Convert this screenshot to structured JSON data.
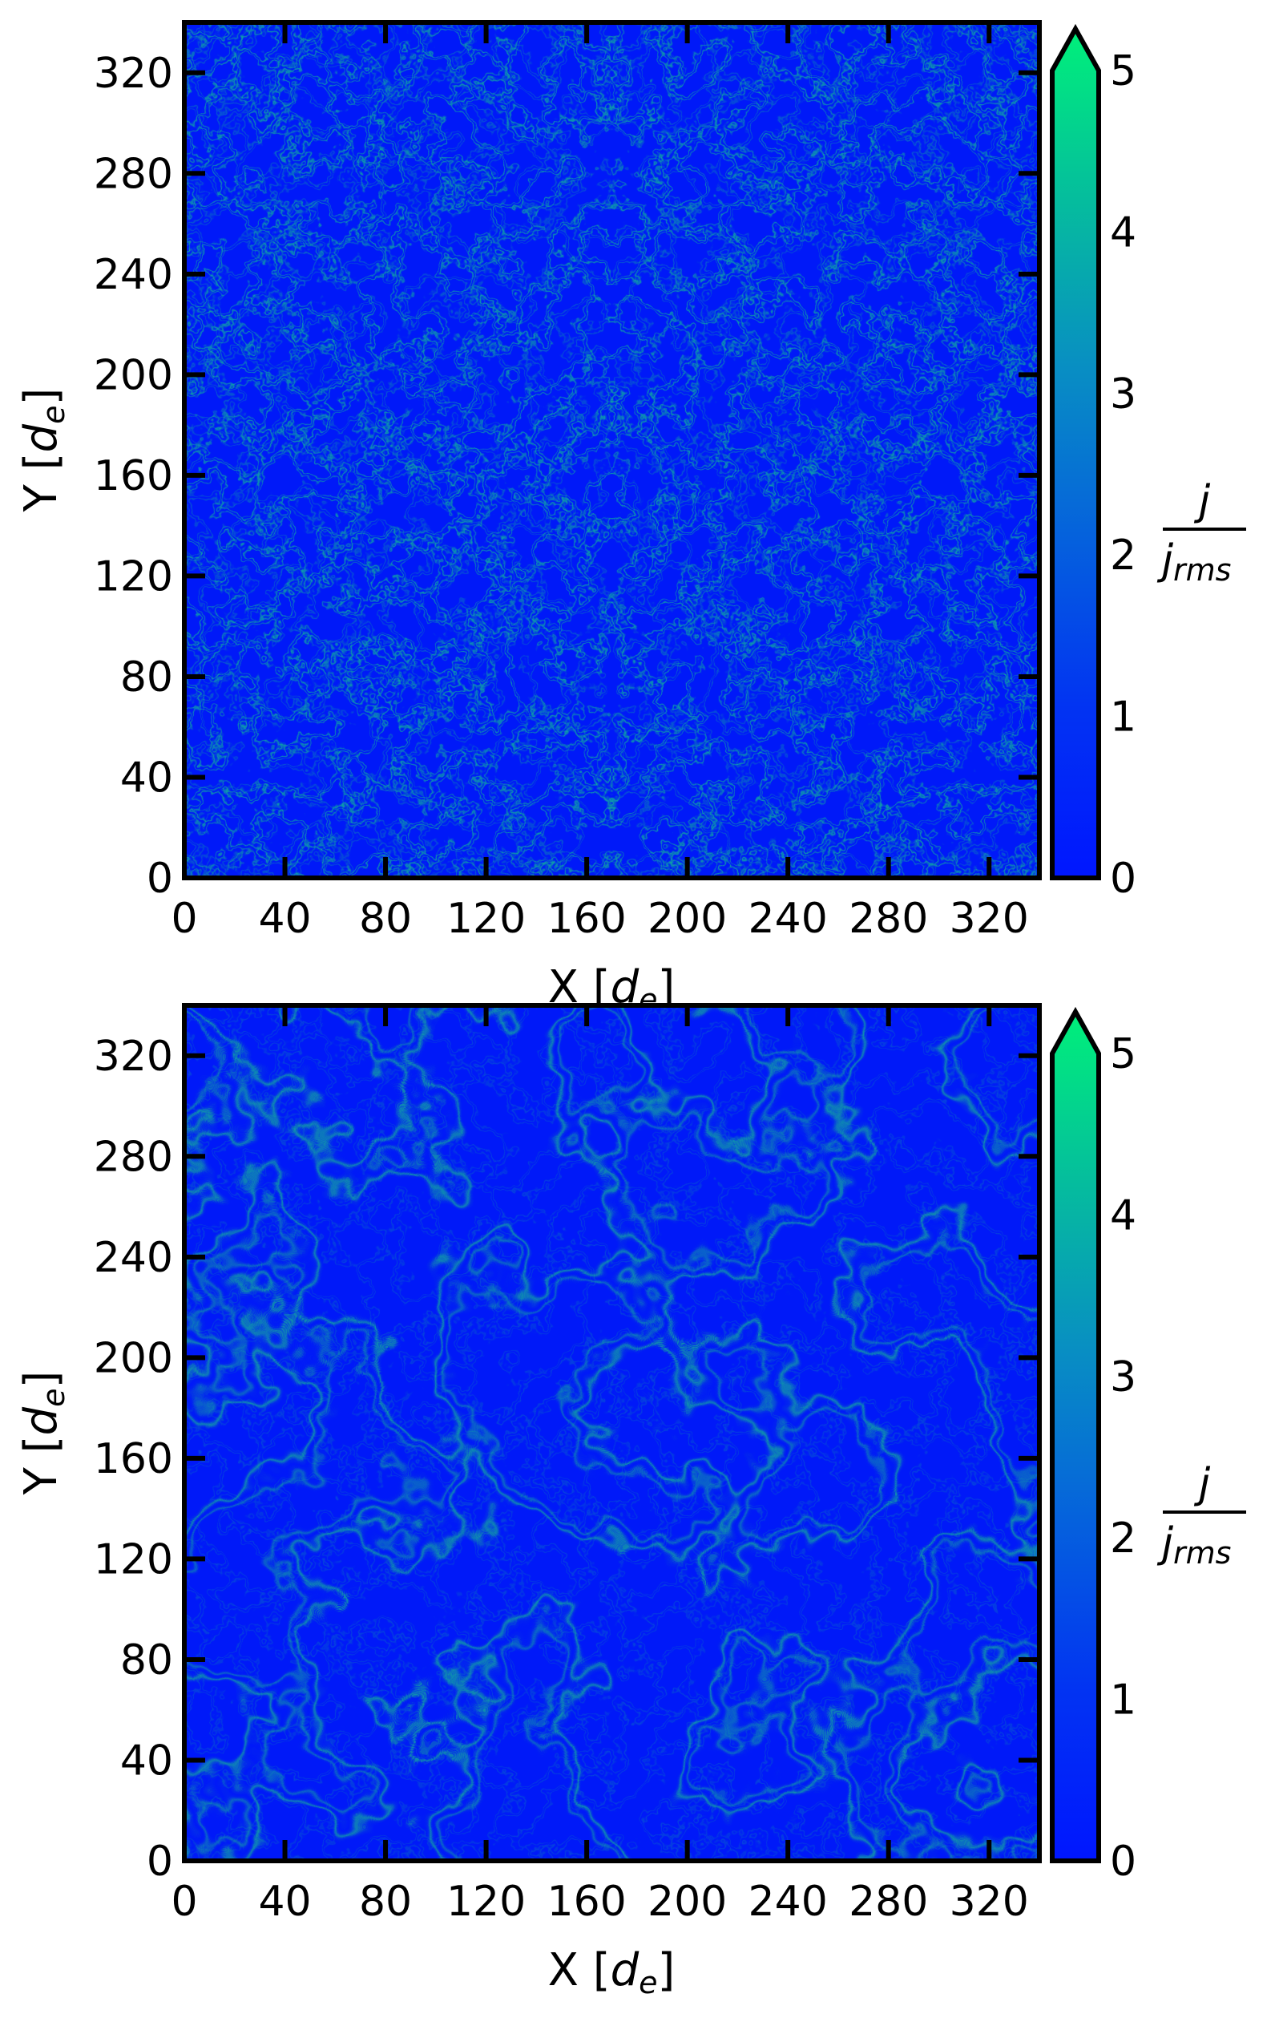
{
  "colors": {
    "low": "#0016ff",
    "mid": "#0a6ae6",
    "high": "#00f07a",
    "frame": "#000000"
  },
  "chart_data": [
    {
      "type": "heatmap",
      "panel": "top",
      "xlabel_main": "X [",
      "xlabel_sym": "d",
      "xlabel_sub": "e",
      "xlabel_end": "]",
      "ylabel_main": "Y [",
      "ylabel_sym": "d",
      "ylabel_sub": "e",
      "ylabel_end": "]",
      "xlim": [
        0,
        340
      ],
      "ylim": [
        0,
        340
      ],
      "xticks": [
        "0",
        "40",
        "80",
        "120",
        "160",
        "200",
        "240",
        "280",
        "320"
      ],
      "yticks": [
        "0",
        "40",
        "80",
        "120",
        "160",
        "200",
        "240",
        "280",
        "320"
      ],
      "colorbar": {
        "range": [
          0,
          5
        ],
        "ticks": [
          "0",
          "1",
          "2",
          "3",
          "4",
          "5"
        ],
        "label_num": "j",
        "label_den": "j",
        "label_den_sub": "rms",
        "extend": "max"
      },
      "structure": "fine-scale turbulent current sheets"
    },
    {
      "type": "heatmap",
      "panel": "bottom",
      "xlabel_main": "X [",
      "xlabel_sym": "d",
      "xlabel_sub": "e",
      "xlabel_end": "]",
      "ylabel_main": "Y [",
      "ylabel_sym": "d",
      "ylabel_sub": "e",
      "ylabel_end": "]",
      "xlim": [
        0,
        340
      ],
      "ylim": [
        0,
        340
      ],
      "xticks": [
        "0",
        "40",
        "80",
        "120",
        "160",
        "200",
        "240",
        "280",
        "320"
      ],
      "yticks": [
        "0",
        "40",
        "80",
        "120",
        "160",
        "200",
        "240",
        "280",
        "320"
      ],
      "colorbar": {
        "range": [
          0,
          5
        ],
        "ticks": [
          "0",
          "1",
          "2",
          "3",
          "4",
          "5"
        ],
        "label_num": "j",
        "label_den": "j",
        "label_den_sub": "rms",
        "extend": "max"
      },
      "structure": "large-scale vortical current sheets"
    }
  ]
}
